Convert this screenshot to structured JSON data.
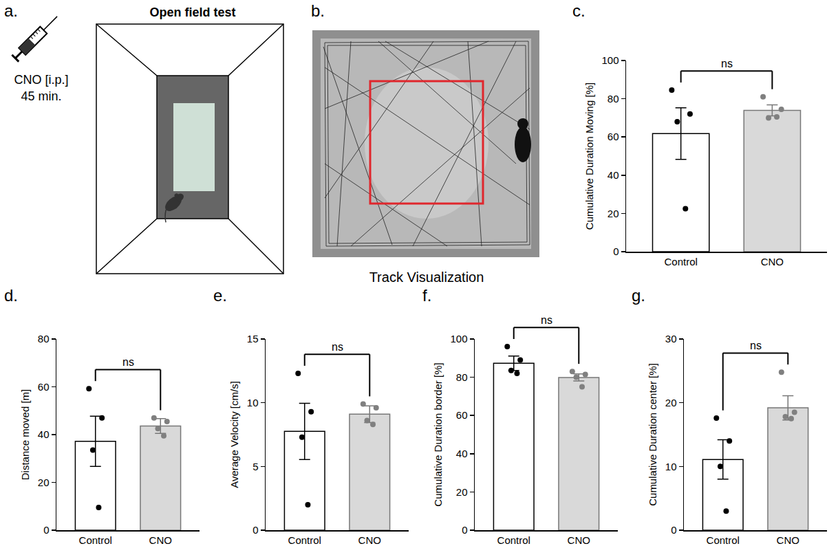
{
  "panels": {
    "a": {
      "label": "a.",
      "title": "Open field test",
      "injection": [
        "CNO [i.p.]",
        "45 min."
      ]
    },
    "b": {
      "label": "b.",
      "caption": "Track Visualization"
    }
  },
  "chart_data": [
    {
      "panel": "c.",
      "type": "bar",
      "categories": [
        "Control",
        "CNO"
      ],
      "values": [
        61.8,
        73.9
      ],
      "errors": [
        13.5,
        2.9
      ],
      "points": [
        [
          84.5,
          72,
          68,
          22.5
        ],
        [
          81,
          74.5,
          70,
          70.5
        ]
      ],
      "colors": [
        "#ffffff",
        "#d9d9d9"
      ],
      "ylabel": "Cumulative Duration Moving [%]",
      "ylim": [
        0,
        100
      ],
      "yticks": [
        0,
        20,
        40,
        60,
        80,
        100
      ],
      "annotations": [
        "ns"
      ]
    },
    {
      "panel": "d.",
      "type": "bar",
      "categories": [
        "Control",
        "CNO"
      ],
      "values": [
        37.2,
        43.6
      ],
      "errors": [
        10.5,
        3.1
      ],
      "points": [
        [
          59.2,
          47,
          33.5,
          9.5
        ],
        [
          47,
          45.5,
          42.5,
          39.5
        ]
      ],
      "colors": [
        "#ffffff",
        "#d9d9d9"
      ],
      "ylabel": "Distance moved [m]",
      "ylim": [
        0,
        80
      ],
      "yticks": [
        0,
        20,
        40,
        60,
        80
      ],
      "annotations": [
        "ns"
      ]
    },
    {
      "panel": "e.",
      "type": "bar",
      "categories": [
        "Control",
        "CNO"
      ],
      "values": [
        7.75,
        9.1
      ],
      "errors": [
        2.2,
        0.65
      ],
      "points": [
        [
          12.3,
          9.3,
          7.3,
          2.0
        ],
        [
          9.9,
          9.6,
          8.6,
          8.3
        ]
      ],
      "colors": [
        "#ffffff",
        "#d9d9d9"
      ],
      "ylabel": "Average Velocity [cm/s]",
      "ylim": [
        0,
        15
      ],
      "yticks": [
        0,
        5,
        10,
        15
      ],
      "annotations": [
        "ns"
      ]
    },
    {
      "panel": "f.",
      "type": "bar",
      "categories": [
        "Control",
        "CNO"
      ],
      "values": [
        87.3,
        79.9
      ],
      "errors": [
        3.8,
        1.8
      ],
      "points": [
        [
          96,
          89,
          83.5,
          82
        ],
        [
          83,
          81.5,
          80,
          75
        ]
      ],
      "colors": [
        "#ffffff",
        "#d9d9d9"
      ],
      "ylabel": "Cumulative Duration border [%]",
      "ylim": [
        0,
        100
      ],
      "yticks": [
        0,
        20,
        40,
        60,
        80,
        100
      ],
      "annotations": [
        "ns"
      ]
    },
    {
      "panel": "g.",
      "type": "bar",
      "categories": [
        "Control",
        "CNO"
      ],
      "values": [
        11.1,
        19.2
      ],
      "errors": [
        3.1,
        1.9
      ],
      "points": [
        [
          17.6,
          14,
          10,
          3
        ],
        [
          24.8,
          18.5,
          17.8,
          17.5
        ]
      ],
      "colors": [
        "#ffffff",
        "#d9d9d9"
      ],
      "ylabel": "Cumulative Duration center [%]",
      "ylim": [
        0,
        30
      ],
      "yticks": [
        0,
        10,
        20,
        30
      ],
      "annotations": [
        "ns"
      ]
    }
  ]
}
